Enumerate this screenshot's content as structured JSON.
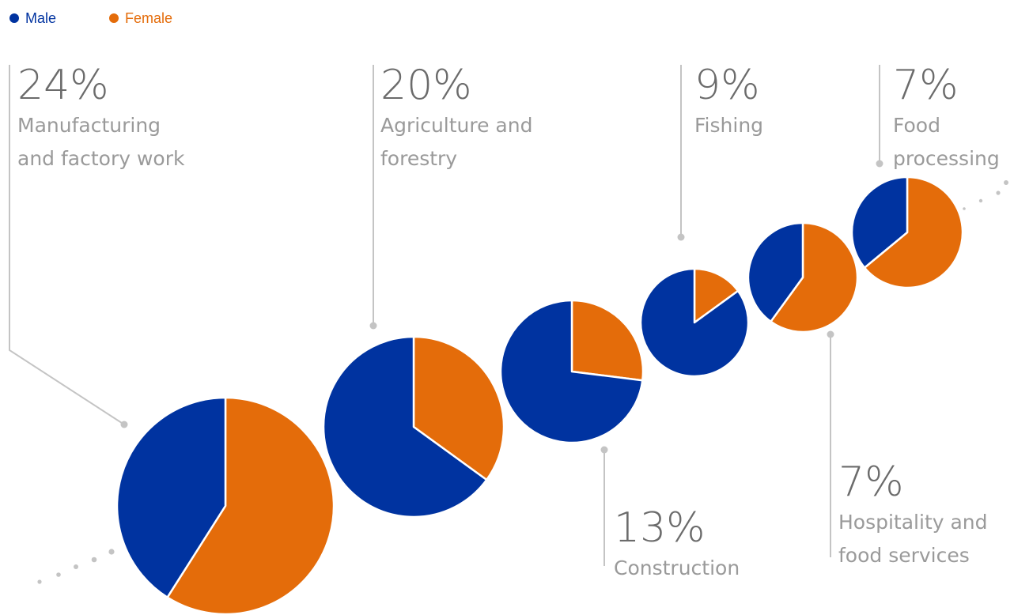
{
  "chart_data": {
    "type": "pie",
    "legend_position": "top-left",
    "legend": [
      {
        "name": "Male",
        "color": "#0033a0"
      },
      {
        "name": "Female",
        "color": "#e46c0a"
      }
    ],
    "series_names": [
      "Male",
      "Female"
    ],
    "categories": [
      {
        "label": "Manufacturing and factory work",
        "label_lines": [
          "Manufacturing",
          "and factory work"
        ],
        "share": "24%",
        "share_value": 24,
        "male_pct": 41,
        "female_pct": 59
      },
      {
        "label": "Agriculture and forestry",
        "label_lines": [
          "Agriculture and",
          "forestry"
        ],
        "share": "20%",
        "share_value": 20,
        "male_pct": 65,
        "female_pct": 35
      },
      {
        "label": "Construction",
        "label_lines": [
          "Construction"
        ],
        "share": "13%",
        "share_value": 13,
        "male_pct": 73,
        "female_pct": 27
      },
      {
        "label": "Fishing",
        "label_lines": [
          "Fishing"
        ],
        "share": "9%",
        "share_value": 9,
        "male_pct": 85,
        "female_pct": 15
      },
      {
        "label": "Hospitality and food services",
        "label_lines": [
          "Hospitality and",
          "food services"
        ],
        "share": "7%",
        "share_value": 7,
        "male_pct": 40,
        "female_pct": 60
      },
      {
        "label": "Food processing",
        "label_lines": [
          "Food",
          "processing"
        ],
        "share": "7%",
        "share_value": 7,
        "male_pct": 36,
        "female_pct": 64
      }
    ]
  }
}
